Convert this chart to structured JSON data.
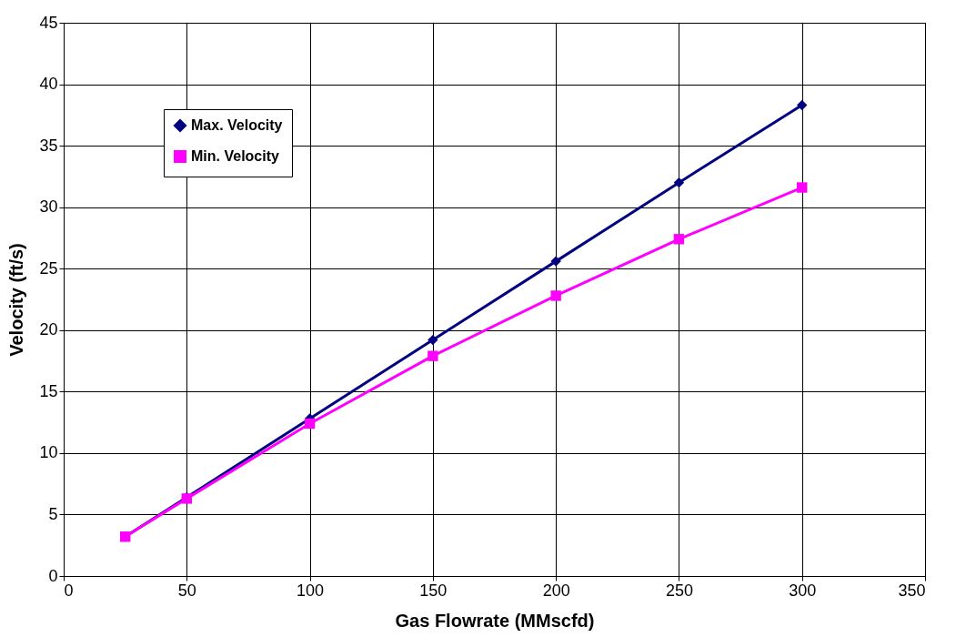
{
  "chart_data": {
    "type": "line",
    "xlabel": "Gas Flowrate (MMscfd)",
    "ylabel": "Velocity (ft/s)",
    "x": [
      25,
      50,
      100,
      150,
      200,
      250,
      300
    ],
    "xlim": [
      0,
      350
    ],
    "xticks": [
      0,
      50,
      100,
      150,
      200,
      250,
      300,
      350
    ],
    "ylim": [
      0,
      45
    ],
    "yticks": [
      0,
      5,
      10,
      15,
      20,
      25,
      30,
      35,
      40,
      45
    ],
    "grid": true,
    "legend": "top left",
    "series": [
      {
        "name": "Max. Velocity",
        "color": "#000080",
        "marker": "diamond",
        "values": [
          3.2,
          6.4,
          12.8,
          19.2,
          25.6,
          32.0,
          38.3
        ]
      },
      {
        "name": "Min. Velocity",
        "color": "#ff00ff",
        "marker": "square",
        "values": [
          3.2,
          6.3,
          12.4,
          17.9,
          22.8,
          27.4,
          31.6
        ]
      }
    ]
  }
}
